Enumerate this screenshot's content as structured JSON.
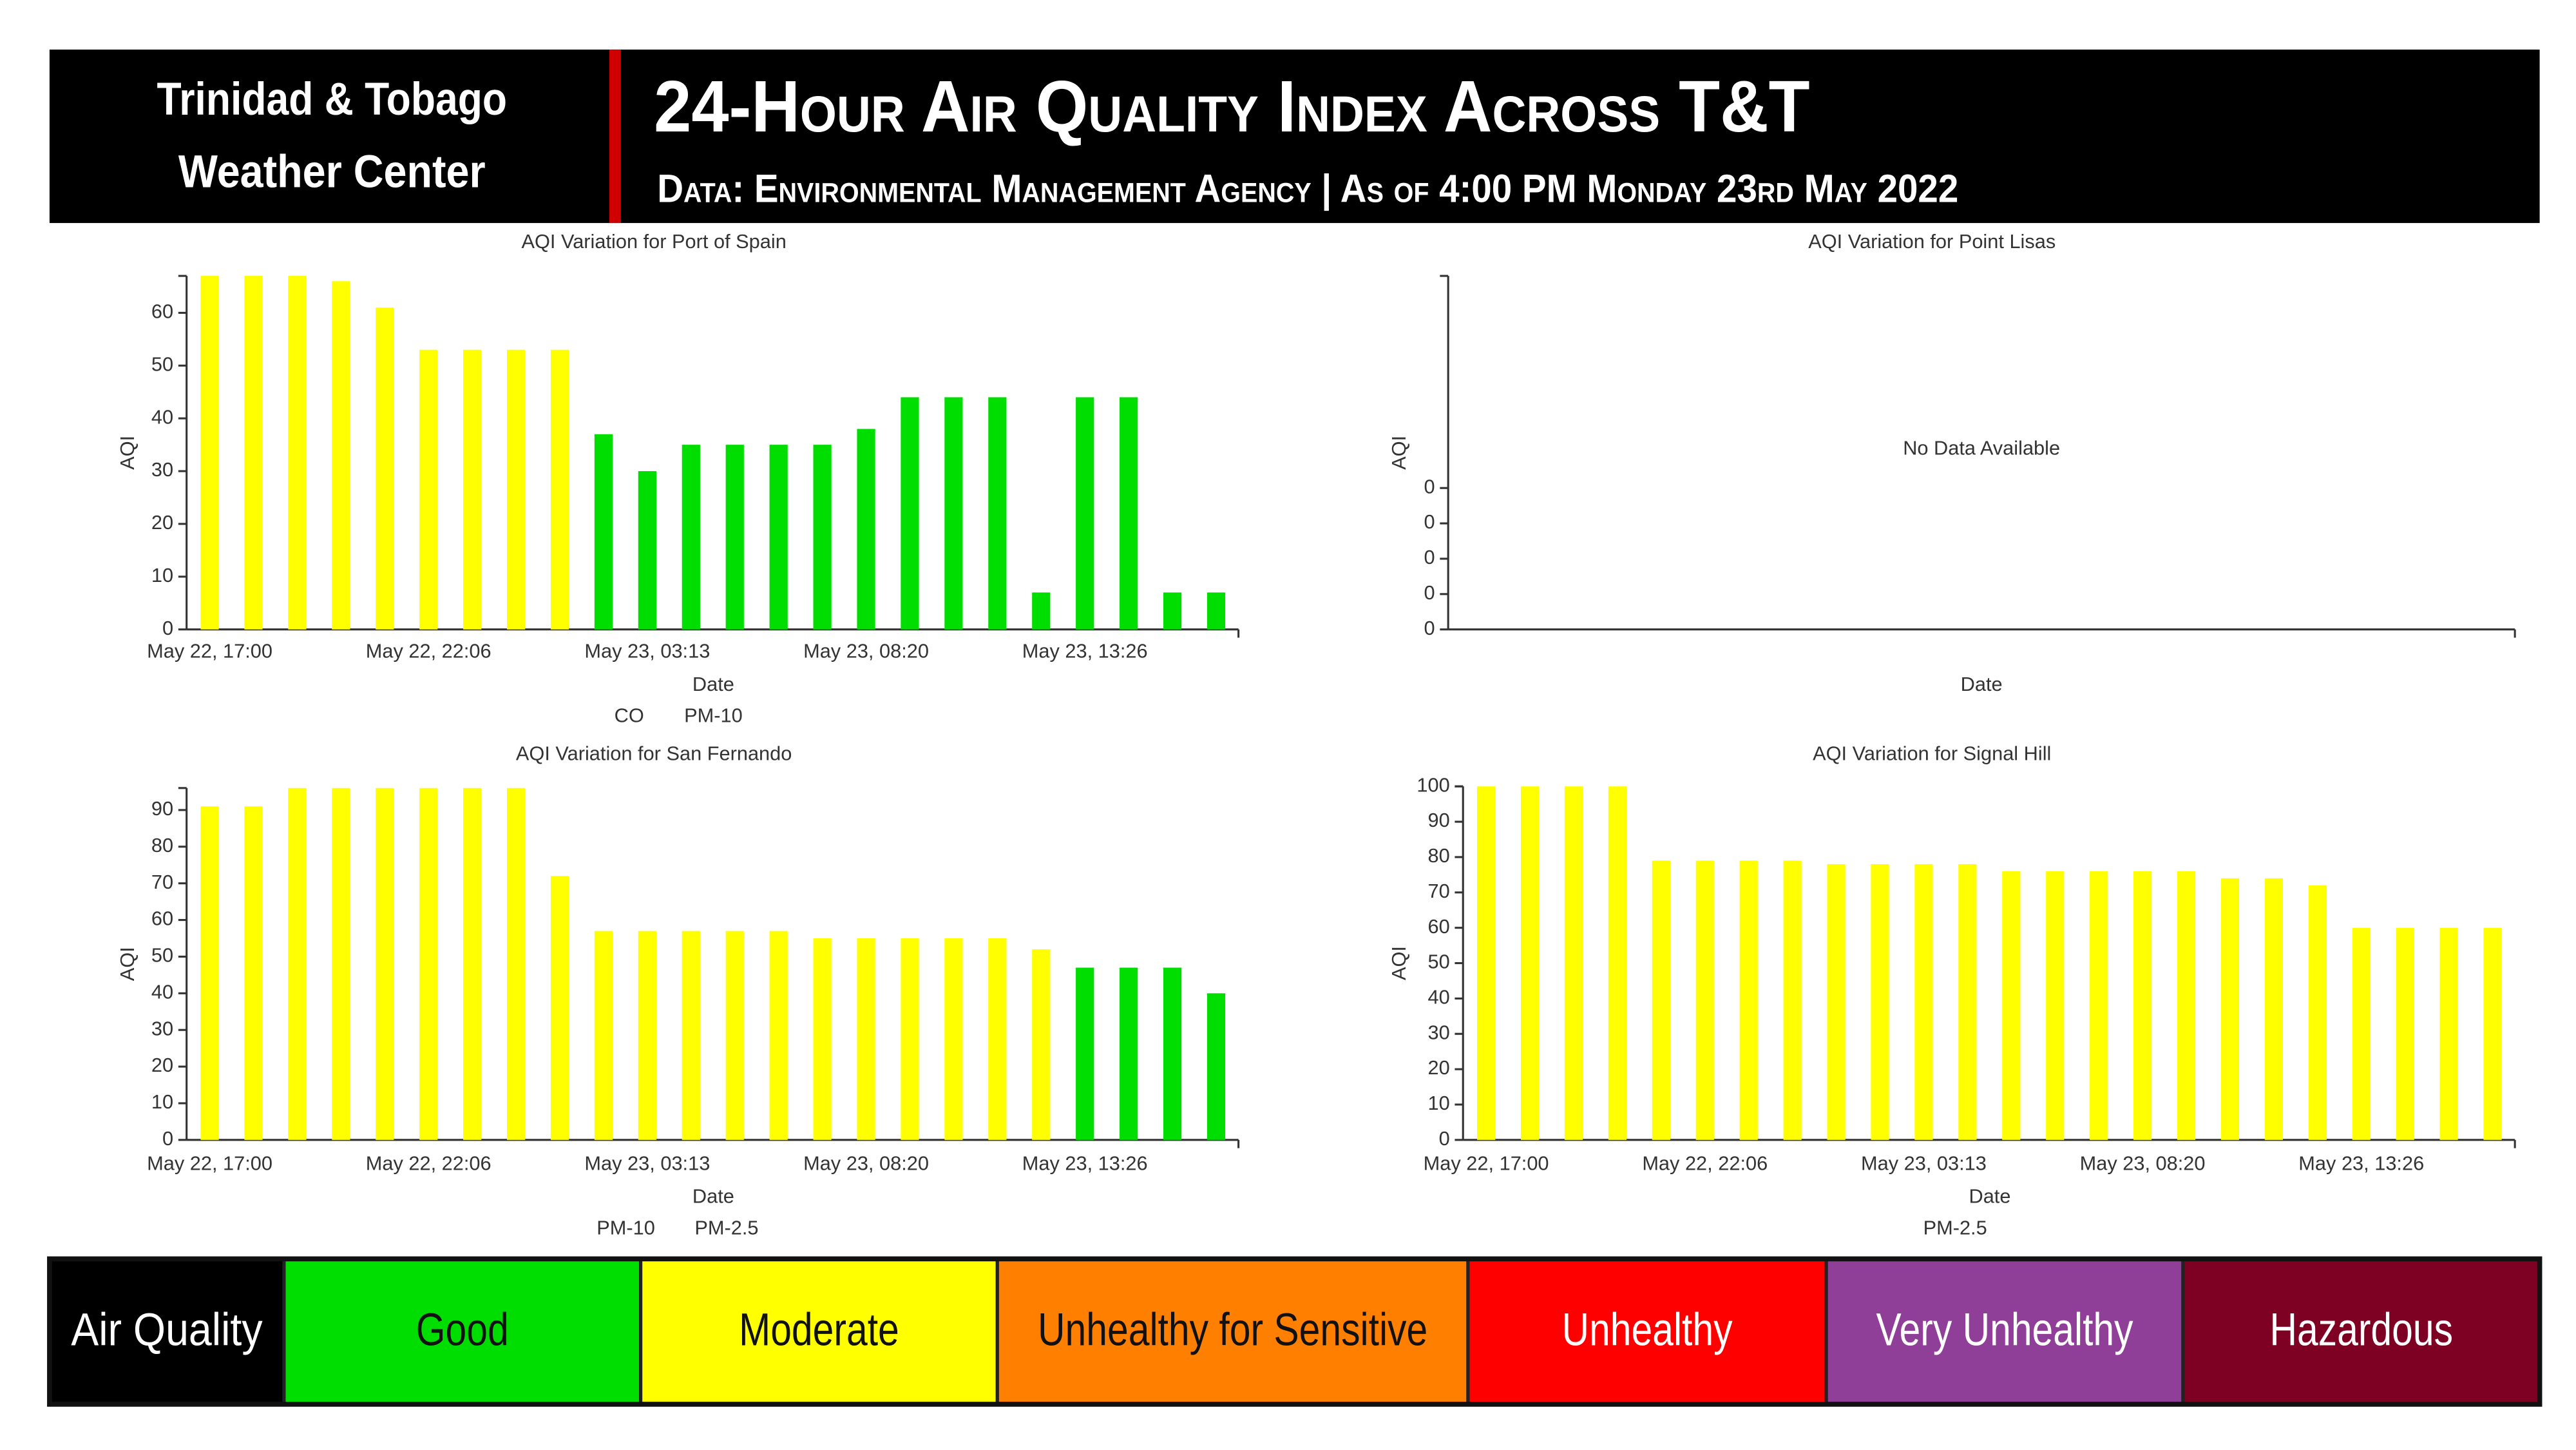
{
  "header": {
    "org_line1": "Trinidad & Tobago",
    "org_line2": "Weather Center",
    "title": "24-Hour Air Quality Index Across T&T",
    "subtitle": "Data: Environmental Management Agency | As of 4:00 PM Monday 23rd May 2022"
  },
  "chart_data": [
    {
      "type": "bar",
      "title": "AQI Variation for Port of Spain",
      "ylabel": "AQI",
      "xlabel": "Date",
      "categories": [
        "May 22, 17:00",
        null,
        null,
        null,
        null,
        "May 22, 22:06",
        null,
        null,
        null,
        null,
        "May 23, 03:13",
        null,
        null,
        null,
        null,
        "May 23, 08:20",
        null,
        null,
        null,
        null,
        "May 23, 13:26",
        null,
        null,
        null
      ],
      "series": [
        {
          "name": "CO",
          "color": "#ffff00",
          "values": [
            67,
            67,
            67,
            66,
            61,
            53,
            53,
            53,
            53,
            null,
            null,
            null,
            null,
            null,
            null,
            null,
            null,
            null,
            null,
            null,
            null,
            null,
            null,
            null
          ]
        },
        {
          "name": "PM-10",
          "color": "#00dd00",
          "values": [
            null,
            null,
            null,
            null,
            null,
            null,
            null,
            null,
            null,
            37,
            30,
            35,
            35,
            35,
            35,
            38,
            44,
            44,
            44,
            7,
            44,
            44,
            7,
            7
          ]
        }
      ],
      "ylim": [
        0,
        67
      ],
      "yticks": [
        0,
        10,
        20,
        30,
        40,
        50,
        60
      ]
    },
    {
      "type": "bar",
      "title": "AQI Variation for Point Lisas",
      "ylabel": "AQI",
      "xlabel": "Date",
      "annotation": "No Data Available",
      "categories": [],
      "series": [],
      "ylim": [
        0,
        1
      ],
      "yticks": [
        {
          "value": 0,
          "label": "0"
        },
        {
          "value": 0.1,
          "label": "0"
        },
        {
          "value": 0.2,
          "label": "0"
        },
        {
          "value": 0.3,
          "label": "0"
        },
        {
          "value": 0.4,
          "label": "0"
        }
      ]
    },
    {
      "type": "bar",
      "title": "AQI Variation for San Fernando",
      "ylabel": "AQI",
      "xlabel": "Date",
      "categories": [
        "May 22, 17:00",
        null,
        null,
        null,
        null,
        "May 22, 22:06",
        null,
        null,
        null,
        null,
        "May 23, 03:13",
        null,
        null,
        null,
        null,
        "May 23, 08:20",
        null,
        null,
        null,
        null,
        "May 23, 13:26",
        null,
        null,
        null
      ],
      "series": [
        {
          "name": "PM-10",
          "color": "#00dd00",
          "values": [
            null,
            null,
            null,
            null,
            null,
            null,
            null,
            null,
            null,
            null,
            null,
            null,
            null,
            null,
            null,
            null,
            null,
            null,
            null,
            null,
            47,
            47,
            47,
            40
          ]
        },
        {
          "name": "PM-2.5",
          "color": "#ffff00",
          "values": [
            91,
            91,
            96,
            96,
            96,
            96,
            96,
            96,
            72,
            57,
            57,
            57,
            57,
            57,
            55,
            55,
            55,
            55,
            55,
            52,
            null,
            null,
            null,
            null
          ]
        }
      ],
      "ylim": [
        0,
        96
      ],
      "yticks": [
        0,
        10,
        20,
        30,
        40,
        50,
        60,
        70,
        80,
        90
      ]
    },
    {
      "type": "bar",
      "title": "AQI Variation for Signal Hill",
      "ylabel": "AQI",
      "xlabel": "Date",
      "categories": [
        "May 22, 17:00",
        null,
        null,
        null,
        null,
        "May 22, 22:06",
        null,
        null,
        null,
        null,
        "May 23, 03:13",
        null,
        null,
        null,
        null,
        "May 23, 08:20",
        null,
        null,
        null,
        null,
        "May 23, 13:26",
        null,
        null,
        null
      ],
      "series": [
        {
          "name": "PM-2.5",
          "color": "#ffff00",
          "values": [
            100,
            100,
            100,
            100,
            79,
            79,
            79,
            79,
            78,
            78,
            78,
            78,
            76,
            76,
            76,
            76,
            76,
            74,
            74,
            72,
            60,
            60,
            60,
            60
          ]
        }
      ],
      "ylim": [
        0,
        100
      ],
      "yticks": [
        0,
        10,
        20,
        30,
        40,
        50,
        60,
        70,
        80,
        90,
        100
      ]
    }
  ],
  "aqi_scale": {
    "label": "Air Quality",
    "levels": [
      {
        "name": "Good",
        "color": "#00dd00"
      },
      {
        "name": "Moderate",
        "color": "#ffff00"
      },
      {
        "name": "Unhealthy for Sensitive",
        "color": "#ff8000"
      },
      {
        "name": "Unhealthy",
        "color": "#ff0000"
      },
      {
        "name": "Very Unhealthy",
        "color": "#8f3f97"
      },
      {
        "name": "Hazardous",
        "color": "#7e0023"
      }
    ]
  }
}
